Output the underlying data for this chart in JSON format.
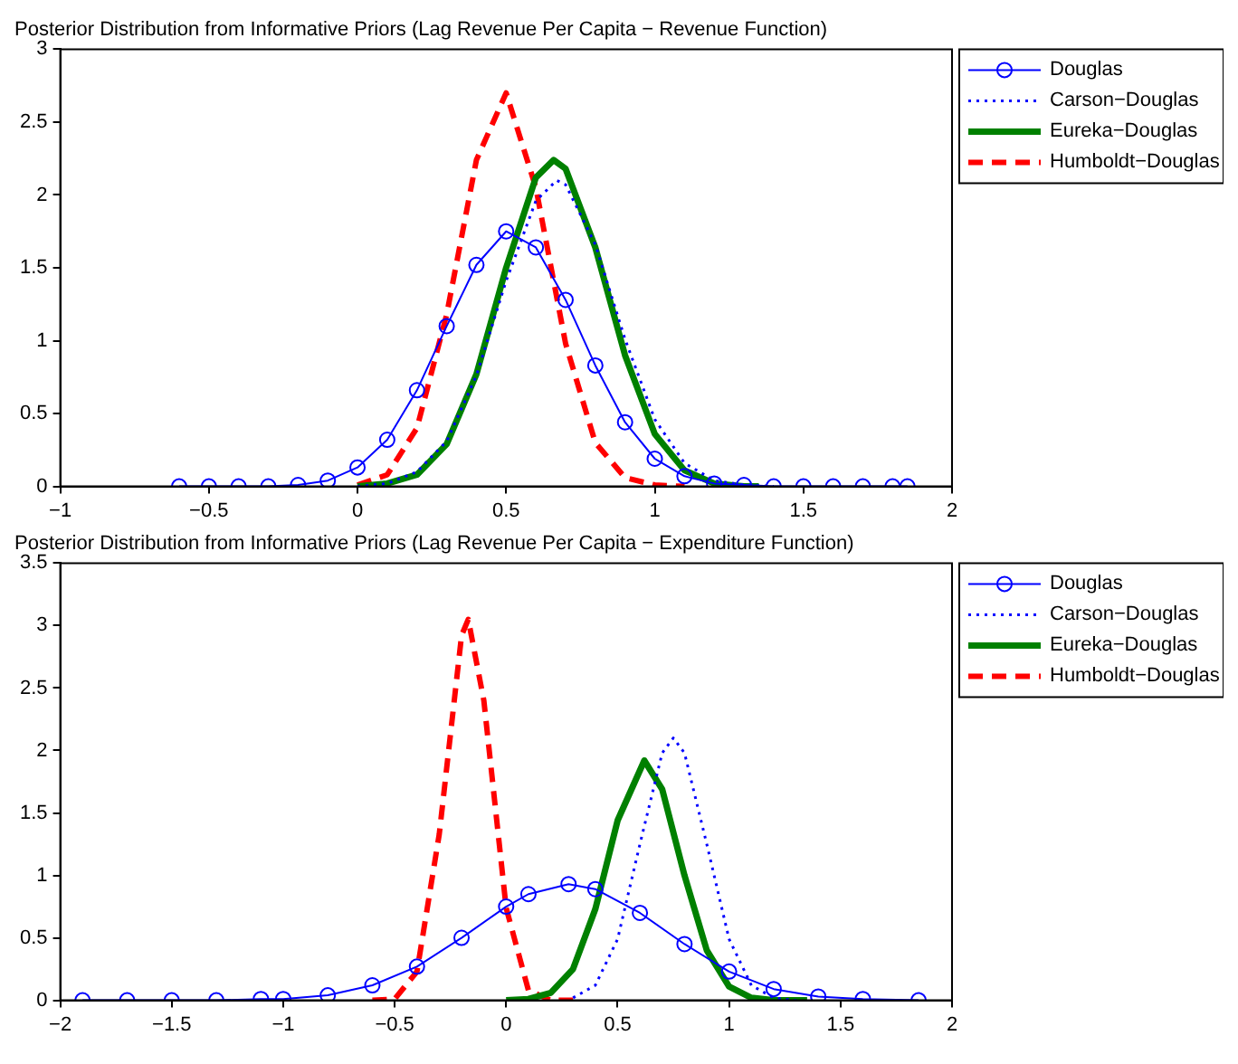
{
  "chart_data": [
    {
      "type": "line",
      "title": "Posterior Distribution from Informative Priors (Lag Revenue Per Capita − Revenue Function)",
      "xlim": [
        -1,
        2
      ],
      "xticks": [
        {
          "value": -1,
          "label": "−1"
        },
        {
          "value": -0.5,
          "label": "−0.5"
        },
        0,
        0.5,
        1,
        1.5,
        2
      ],
      "ylim": [
        0,
        3
      ],
      "yticks": [
        0,
        0.5,
        1,
        1.5,
        2,
        2.5,
        3
      ],
      "grid": false,
      "legend": "top right",
      "series": [
        {
          "name": "Douglas",
          "color": "#0000ff",
          "marker": "circle",
          "line_style": "solid",
          "x": [
            -0.6,
            -0.5,
            -0.4,
            -0.3,
            -0.2,
            -0.1,
            0,
            0.1,
            0.2,
            0.3,
            0.4,
            0.5,
            0.6,
            0.7,
            0.8,
            0.9,
            1.0,
            1.1,
            1.2,
            1.3,
            1.4,
            1.5,
            1.6,
            1.7,
            1.8,
            1.85
          ],
          "values": [
            0,
            0,
            0,
            0,
            0.01,
            0.04,
            0.13,
            0.32,
            0.66,
            1.1,
            1.52,
            1.75,
            1.64,
            1.28,
            0.83,
            0.44,
            0.19,
            0.07,
            0.02,
            0.01,
            0,
            0,
            0,
            0,
            0,
            0
          ]
        },
        {
          "name": "Carson−Douglas",
          "color": "#0000ff",
          "marker": "none",
          "line_style": "dotted",
          "x": [
            0,
            0.1,
            0.2,
            0.3,
            0.4,
            0.5,
            0.6,
            0.67,
            0.7,
            0.8,
            0.9,
            1.0,
            1.1,
            1.2,
            1.3,
            1.4
          ],
          "values": [
            0,
            0.02,
            0.1,
            0.31,
            0.76,
            1.41,
            1.96,
            2.1,
            2.07,
            1.66,
            1.01,
            0.46,
            0.16,
            0.04,
            0.01,
            0
          ]
        },
        {
          "name": "Eureka−Douglas",
          "color": "#008000",
          "marker": "none",
          "line_style": "solid",
          "x": [
            0,
            0.1,
            0.2,
            0.3,
            0.4,
            0.5,
            0.6,
            0.66,
            0.7,
            0.8,
            0.9,
            1.0,
            1.1,
            1.2,
            1.3,
            1.35
          ],
          "values": [
            0,
            0.02,
            0.08,
            0.29,
            0.77,
            1.5,
            2.12,
            2.24,
            2.18,
            1.64,
            0.9,
            0.36,
            0.11,
            0.02,
            0,
            0
          ]
        },
        {
          "name": "Humboldt−Douglas",
          "color": "#ff0000",
          "marker": "none",
          "line_style": "dashed",
          "x": [
            0,
            0.1,
            0.2,
            0.3,
            0.4,
            0.5,
            0.6,
            0.7,
            0.8,
            0.9,
            1.0,
            1.1
          ],
          "values": [
            0.01,
            0.08,
            0.4,
            1.18,
            2.24,
            2.7,
            2.05,
            0.98,
            0.3,
            0.06,
            0.01,
            0
          ]
        }
      ]
    },
    {
      "type": "line",
      "title": "Posterior Distribution from Informative Priors (Lag Revenue Per Capita − Expenditure Function)",
      "xlim": [
        -2,
        2
      ],
      "xticks": [
        {
          "value": -2,
          "label": "−2"
        },
        {
          "value": -1.5,
          "label": "−1.5"
        },
        {
          "value": -1,
          "label": "−1"
        },
        {
          "value": -0.5,
          "label": "−0.5"
        },
        0,
        0.5,
        1,
        1.5,
        2
      ],
      "ylim": [
        0,
        3.5
      ],
      "yticks": [
        0,
        0.5,
        1,
        1.5,
        2,
        2.5,
        3,
        3.5
      ],
      "grid": false,
      "legend": "top right",
      "series": [
        {
          "name": "Douglas",
          "color": "#0000ff",
          "marker": "circle",
          "line_style": "solid",
          "x": [
            -1.9,
            -1.7,
            -1.5,
            -1.3,
            -1.1,
            -1.0,
            -0.8,
            -0.6,
            -0.4,
            -0.2,
            0,
            0.1,
            0.28,
            0.4,
            0.6,
            0.8,
            1.0,
            1.2,
            1.4,
            1.6,
            1.85
          ],
          "values": [
            0,
            0,
            0,
            0,
            0.01,
            0.01,
            0.04,
            0.12,
            0.27,
            0.5,
            0.75,
            0.85,
            0.93,
            0.89,
            0.7,
            0.45,
            0.23,
            0.09,
            0.03,
            0.01,
            0
          ]
        },
        {
          "name": "Carson−Douglas",
          "color": "#0000ff",
          "marker": "none",
          "line_style": "dotted",
          "x": [
            0.3,
            0.4,
            0.5,
            0.6,
            0.7,
            0.75,
            0.8,
            0.9,
            1.0,
            1.1,
            1.2,
            1.3
          ],
          "values": [
            0.02,
            0.12,
            0.49,
            1.25,
            1.98,
            2.1,
            1.98,
            1.25,
            0.49,
            0.12,
            0.02,
            0
          ]
        },
        {
          "name": "Eureka−Douglas",
          "color": "#008000",
          "marker": "none",
          "line_style": "solid",
          "x": [
            0,
            0.1,
            0.2,
            0.3,
            0.4,
            0.5,
            0.62,
            0.7,
            0.8,
            0.9,
            1.0,
            1.1,
            1.2,
            1.35
          ],
          "values": [
            0,
            0.01,
            0.06,
            0.25,
            0.73,
            1.44,
            1.92,
            1.69,
            1.0,
            0.4,
            0.11,
            0.02,
            0,
            0
          ]
        },
        {
          "name": "Humboldt−Douglas",
          "color": "#ff0000",
          "marker": "none",
          "line_style": "dashed",
          "x": [
            -0.6,
            -0.5,
            -0.4,
            -0.3,
            -0.2,
            -0.17,
            -0.1,
            0,
            0.1,
            0.2,
            0.3
          ],
          "values": [
            0,
            0.01,
            0.23,
            1.33,
            2.92,
            3.05,
            2.4,
            0.74,
            0.08,
            0,
            0
          ]
        }
      ]
    }
  ]
}
